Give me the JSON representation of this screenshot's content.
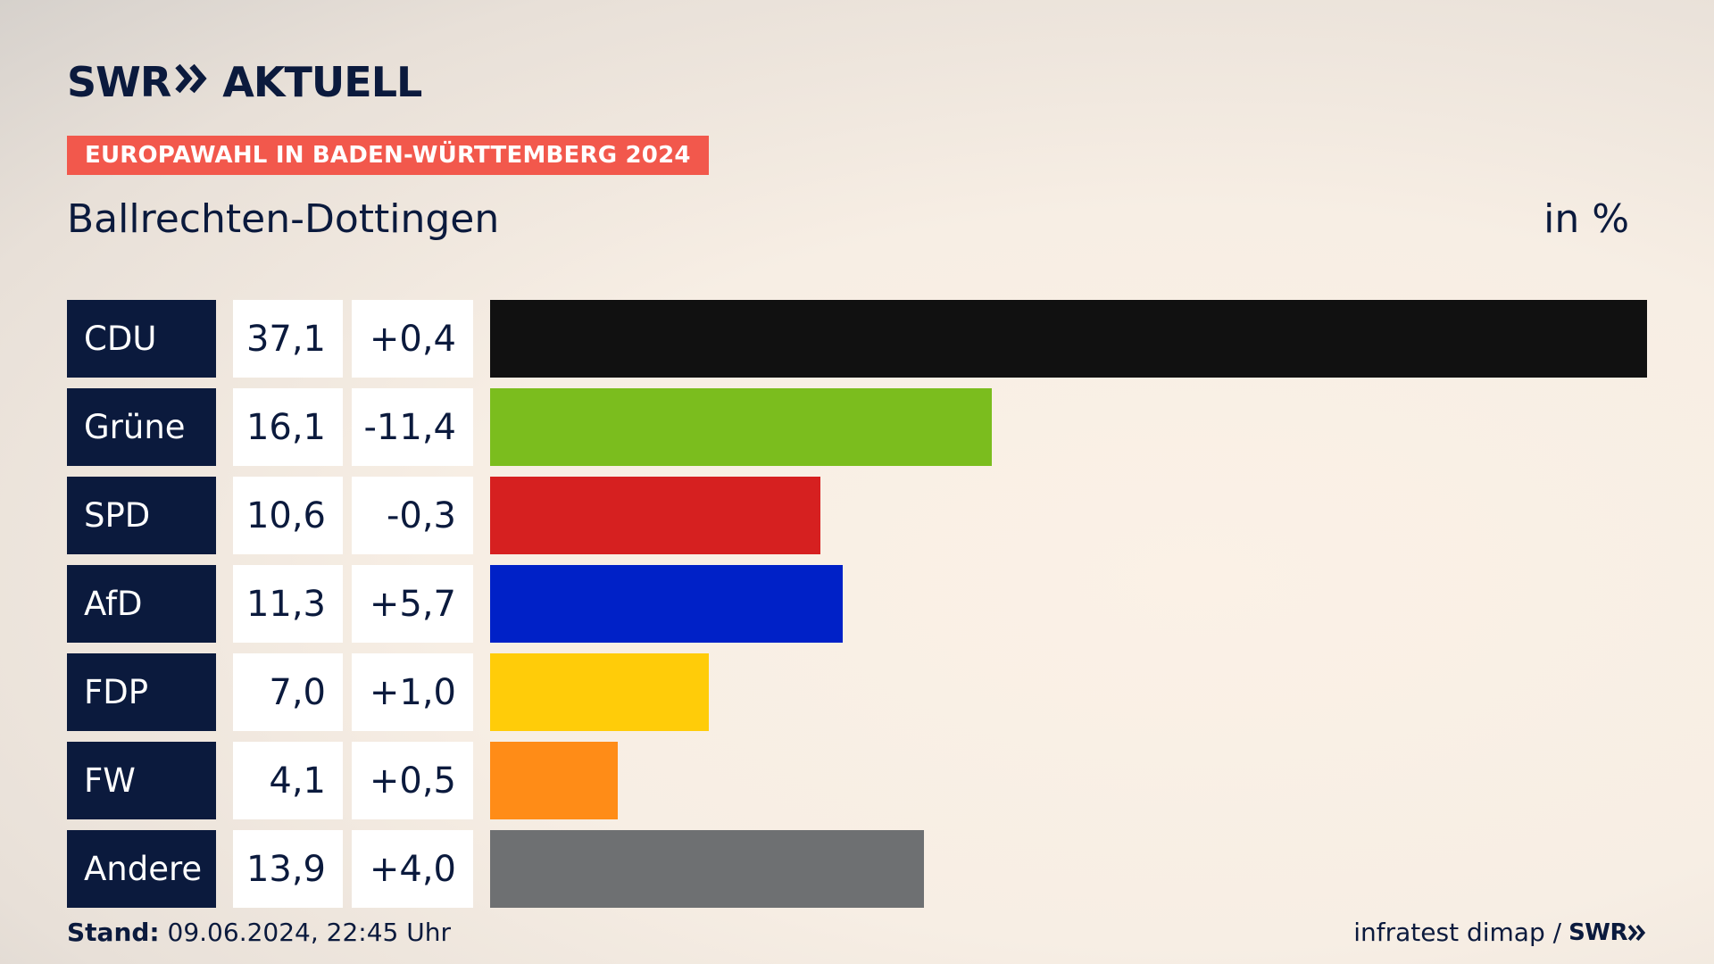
{
  "header": {
    "logo_left": "SWR",
    "logo_right": "AKTUELL",
    "tag": "EUROPAWAHL IN BADEN-WÜRTTEMBERG 2024",
    "region": "Ballrechten-Dottingen",
    "unit": "in %"
  },
  "footer": {
    "stand_label": "Stand:",
    "stand_value": "09.06.2024, 22:45 Uhr",
    "source": "infratest dimap /",
    "source_logo": "SWR"
  },
  "colors": {
    "navy": "#0b1a3d",
    "tag": "#f2584c"
  },
  "icons": {
    "logo_chevrons": "double-chevron-right-icon",
    "footer_chevrons": "double-chevron-right-icon"
  },
  "chart_data": {
    "type": "bar",
    "orientation": "horizontal",
    "title": "Ballrechten-Dottingen",
    "ylabel": "in %",
    "xlim": [
      0,
      37.1
    ],
    "categories": [
      "CDU",
      "Grüne",
      "SPD",
      "AfD",
      "FDP",
      "FW",
      "Andere"
    ],
    "values": [
      37.1,
      16.1,
      10.6,
      11.3,
      7.0,
      4.1,
      13.9
    ],
    "value_labels": [
      "37,1",
      "16,1",
      "10,6",
      "11,3",
      "7,0",
      "4,1",
      "13,9"
    ],
    "diff_labels": [
      "+0,4",
      "-11,4",
      "-0,3",
      "+5,7",
      "+1,0",
      "+0,5",
      "+4,0"
    ],
    "bar_colors": [
      "#111111",
      "#7bbd1e",
      "#d62020",
      "#0021c7",
      "#ffcc09",
      "#ff8c17",
      "#6e7072"
    ]
  }
}
